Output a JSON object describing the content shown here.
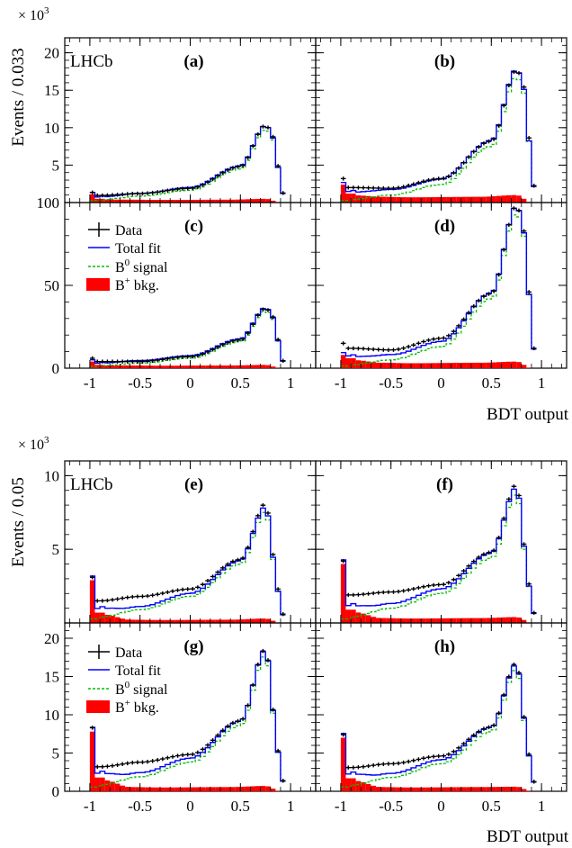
{
  "figure": {
    "top_multiplier": "× 10",
    "top_multiplier_exp": "3",
    "top_ylabel": "Events / 0.033",
    "bottom_multiplier": "× 10",
    "bottom_multiplier_exp": "3",
    "bottom_ylabel": "Events / 0.05",
    "xlabel": "BDT output",
    "experiment_label": "LHCb",
    "legend": {
      "data": "Data",
      "total_fit": "Total fit",
      "signal_prefix": "B",
      "signal_sup": "0",
      "signal_suffix": " signal",
      "bkg_prefix": "B",
      "bkg_sup": "+",
      "bkg_suffix": " bkg."
    },
    "colors": {
      "data": "#000000",
      "total_fit": "#0000ff",
      "signal": "#00c000",
      "background": "#ff0000"
    }
  },
  "chart_data": [
    {
      "panel": "(a)",
      "type": "histogram",
      "xlabel": "",
      "ylabel": "Events / 0.033",
      "ylabel_multiplier": "×10^3",
      "xlim": [
        -1.25,
        1.25
      ],
      "ylim": [
        0,
        22
      ],
      "yticks": [
        5,
        10,
        15,
        20
      ],
      "xticks": [
        -1,
        -0.5,
        0,
        0.5,
        1
      ],
      "bin_range": [
        -1,
        0.95
      ],
      "data_shape": {
        "peak": 1.35,
        "tail": 0.95,
        "level_m05": 1.2,
        "level_0": 1.9,
        "level_05": 4.8,
        "max": 10.3,
        "edge": 8.5
      },
      "signal_shape": {
        "level_m09": 0.35,
        "level_m05": 0.85,
        "level_0": 1.65,
        "level_05": 4.5,
        "max": 9.8,
        "edge": 8.1
      },
      "background_shape": {
        "peak": 1.1,
        "tail": 0.5,
        "floor": 0.35,
        "bump": 0.5
      }
    },
    {
      "panel": "(b)",
      "type": "histogram",
      "xlabel": "",
      "ylabel": "",
      "xlim": [
        -1.25,
        1.25
      ],
      "ylim": [
        0,
        22
      ],
      "yticks": [
        5,
        10,
        15,
        20
      ],
      "xticks": [
        -1,
        -0.5,
        0,
        0.5,
        1
      ],
      "bin_range": [
        -1,
        0.95
      ],
      "data_shape": {
        "peak": 3.2,
        "tail": 2.0,
        "level_m05": 1.9,
        "level_0": 3.2,
        "level_05": 8.2,
        "max": 17.7,
        "edge": 15.0
      },
      "signal_shape": {
        "level_m09": 0.4,
        "level_m05": 1.0,
        "level_0": 2.4,
        "level_05": 7.5,
        "max": 16.8,
        "edge": 14.2
      },
      "background_shape": {
        "peak": 2.4,
        "tail": 1.2,
        "floor": 0.7,
        "bump": 1.0
      }
    },
    {
      "panel": "(c)",
      "type": "histogram",
      "xlabel": "",
      "ylabel": "",
      "xlim": [
        -1.25,
        1.25
      ],
      "ylim": [
        0,
        100
      ],
      "yticks": [
        0,
        50,
        100
      ],
      "xticks": [
        -1,
        -0.5,
        0,
        0.5,
        1
      ],
      "bin_range": [
        -1,
        0.95
      ],
      "data_shape": {
        "peak": 6.0,
        "tail": 4.0,
        "level_m05": 4.0,
        "level_0": 7.0,
        "level_05": 17.0,
        "max": 36.0,
        "edge": 30.0
      },
      "signal_shape": {
        "level_m09": 1.5,
        "level_m05": 3.0,
        "level_0": 6.0,
        "level_05": 16.0,
        "max": 34.5,
        "edge": 28.5
      },
      "background_shape": {
        "peak": 4.0,
        "tail": 2.0,
        "floor": 1.5,
        "bump": 2.0
      }
    },
    {
      "panel": "(d)",
      "type": "histogram",
      "xlabel": "BDT output",
      "ylabel": "",
      "xlim": [
        -1.25,
        1.25
      ],
      "ylim": [
        0,
        100
      ],
      "yticks": [
        0,
        50,
        100
      ],
      "xticks": [
        -1,
        -0.5,
        0,
        0.5,
        1
      ],
      "bin_range": [
        -1,
        0.95
      ],
      "data_shape": {
        "peak": 15.0,
        "tail": 12.0,
        "level_m05": 11.0,
        "level_0": 18.0,
        "level_05": 45.0,
        "max": 98.0,
        "edge": 80.0
      },
      "signal_shape": {
        "level_m09": 2.0,
        "level_m05": 5.0,
        "level_0": 13.0,
        "level_05": 42.0,
        "max": 94.0,
        "edge": 77.0
      },
      "background_shape": {
        "peak": 8.0,
        "tail": 6.0,
        "floor": 3.0,
        "bump": 4.0
      }
    },
    {
      "panel": "(e)",
      "type": "histogram",
      "xlabel": "",
      "ylabel": "Events / 0.05",
      "ylabel_multiplier": "×10^3",
      "xlim": [
        -1.25,
        1.25
      ],
      "ylim": [
        0,
        11
      ],
      "yticks": [
        5,
        10
      ],
      "xticks": [
        -1,
        -0.5,
        0,
        0.5,
        1
      ],
      "bin_range": [
        -1,
        0.95
      ],
      "data_shape": {
        "peak": 3.1,
        "tail": 1.5,
        "level_m05": 1.8,
        "level_0": 2.3,
        "level_05": 4.3,
        "max": 8.1,
        "edge": 4.0
      },
      "signal_shape": {
        "level_m09": 0.4,
        "level_m05": 0.9,
        "level_0": 1.8,
        "level_05": 4.0,
        "max": 7.6,
        "edge": 3.7
      },
      "background_shape": {
        "peak": 2.9,
        "tail": 0.7,
        "floor": 0.2,
        "bump": 0.3
      }
    },
    {
      "panel": "(f)",
      "type": "histogram",
      "xlabel": "",
      "ylabel": "",
      "xlim": [
        -1.25,
        1.25
      ],
      "ylim": [
        0,
        11
      ],
      "yticks": [
        5,
        10
      ],
      "xticks": [
        -1,
        -0.5,
        0,
        0.5,
        1
      ],
      "bin_range": [
        -1,
        0.95
      ],
      "data_shape": {
        "peak": 4.2,
        "tail": 1.9,
        "level_m05": 2.1,
        "level_0": 2.6,
        "level_05": 4.8,
        "max": 9.4,
        "edge": 4.6
      },
      "signal_shape": {
        "level_m09": 0.4,
        "level_m05": 1.0,
        "level_0": 2.0,
        "level_05": 4.4,
        "max": 8.8,
        "edge": 4.3
      },
      "background_shape": {
        "peak": 4.0,
        "tail": 0.9,
        "floor": 0.3,
        "bump": 0.4
      }
    },
    {
      "panel": "(g)",
      "type": "histogram",
      "xlabel": "",
      "ylabel": "",
      "xlim": [
        -1.25,
        1.25
      ],
      "ylim": [
        0,
        22
      ],
      "yticks": [
        0,
        5,
        10,
        15,
        20
      ],
      "xticks": [
        -1,
        -0.5,
        0,
        0.5,
        1
      ],
      "bin_range": [
        -1,
        0.95
      ],
      "data_shape": {
        "peak": 8.3,
        "tail": 3.2,
        "level_m05": 3.8,
        "level_0": 4.8,
        "level_05": 9.2,
        "max": 18.6,
        "edge": 9.2
      },
      "signal_shape": {
        "level_m09": 0.8,
        "level_m05": 1.9,
        "level_0": 3.8,
        "level_05": 8.6,
        "max": 17.8,
        "edge": 8.8
      },
      "background_shape": {
        "peak": 7.8,
        "tail": 1.8,
        "floor": 0.5,
        "bump": 0.7
      }
    },
    {
      "panel": "(h)",
      "type": "histogram",
      "xlabel": "BDT output",
      "ylabel": "",
      "xlim": [
        -1.25,
        1.25
      ],
      "ylim": [
        0,
        22
      ],
      "yticks": [
        0,
        5,
        10,
        15,
        20
      ],
      "xticks": [
        -1,
        -0.5,
        0,
        0.5,
        1
      ],
      "bin_range": [
        -1,
        0.95
      ],
      "data_shape": {
        "peak": 7.4,
        "tail": 3.1,
        "level_m05": 3.6,
        "level_0": 4.6,
        "level_05": 8.4,
        "max": 16.8,
        "edge": 8.4
      },
      "signal_shape": {
        "level_m09": 0.8,
        "level_m05": 1.8,
        "level_0": 3.6,
        "level_05": 7.8,
        "max": 16.0,
        "edge": 8.0
      },
      "background_shape": {
        "peak": 7.0,
        "tail": 1.7,
        "floor": 0.5,
        "bump": 0.6
      }
    }
  ]
}
